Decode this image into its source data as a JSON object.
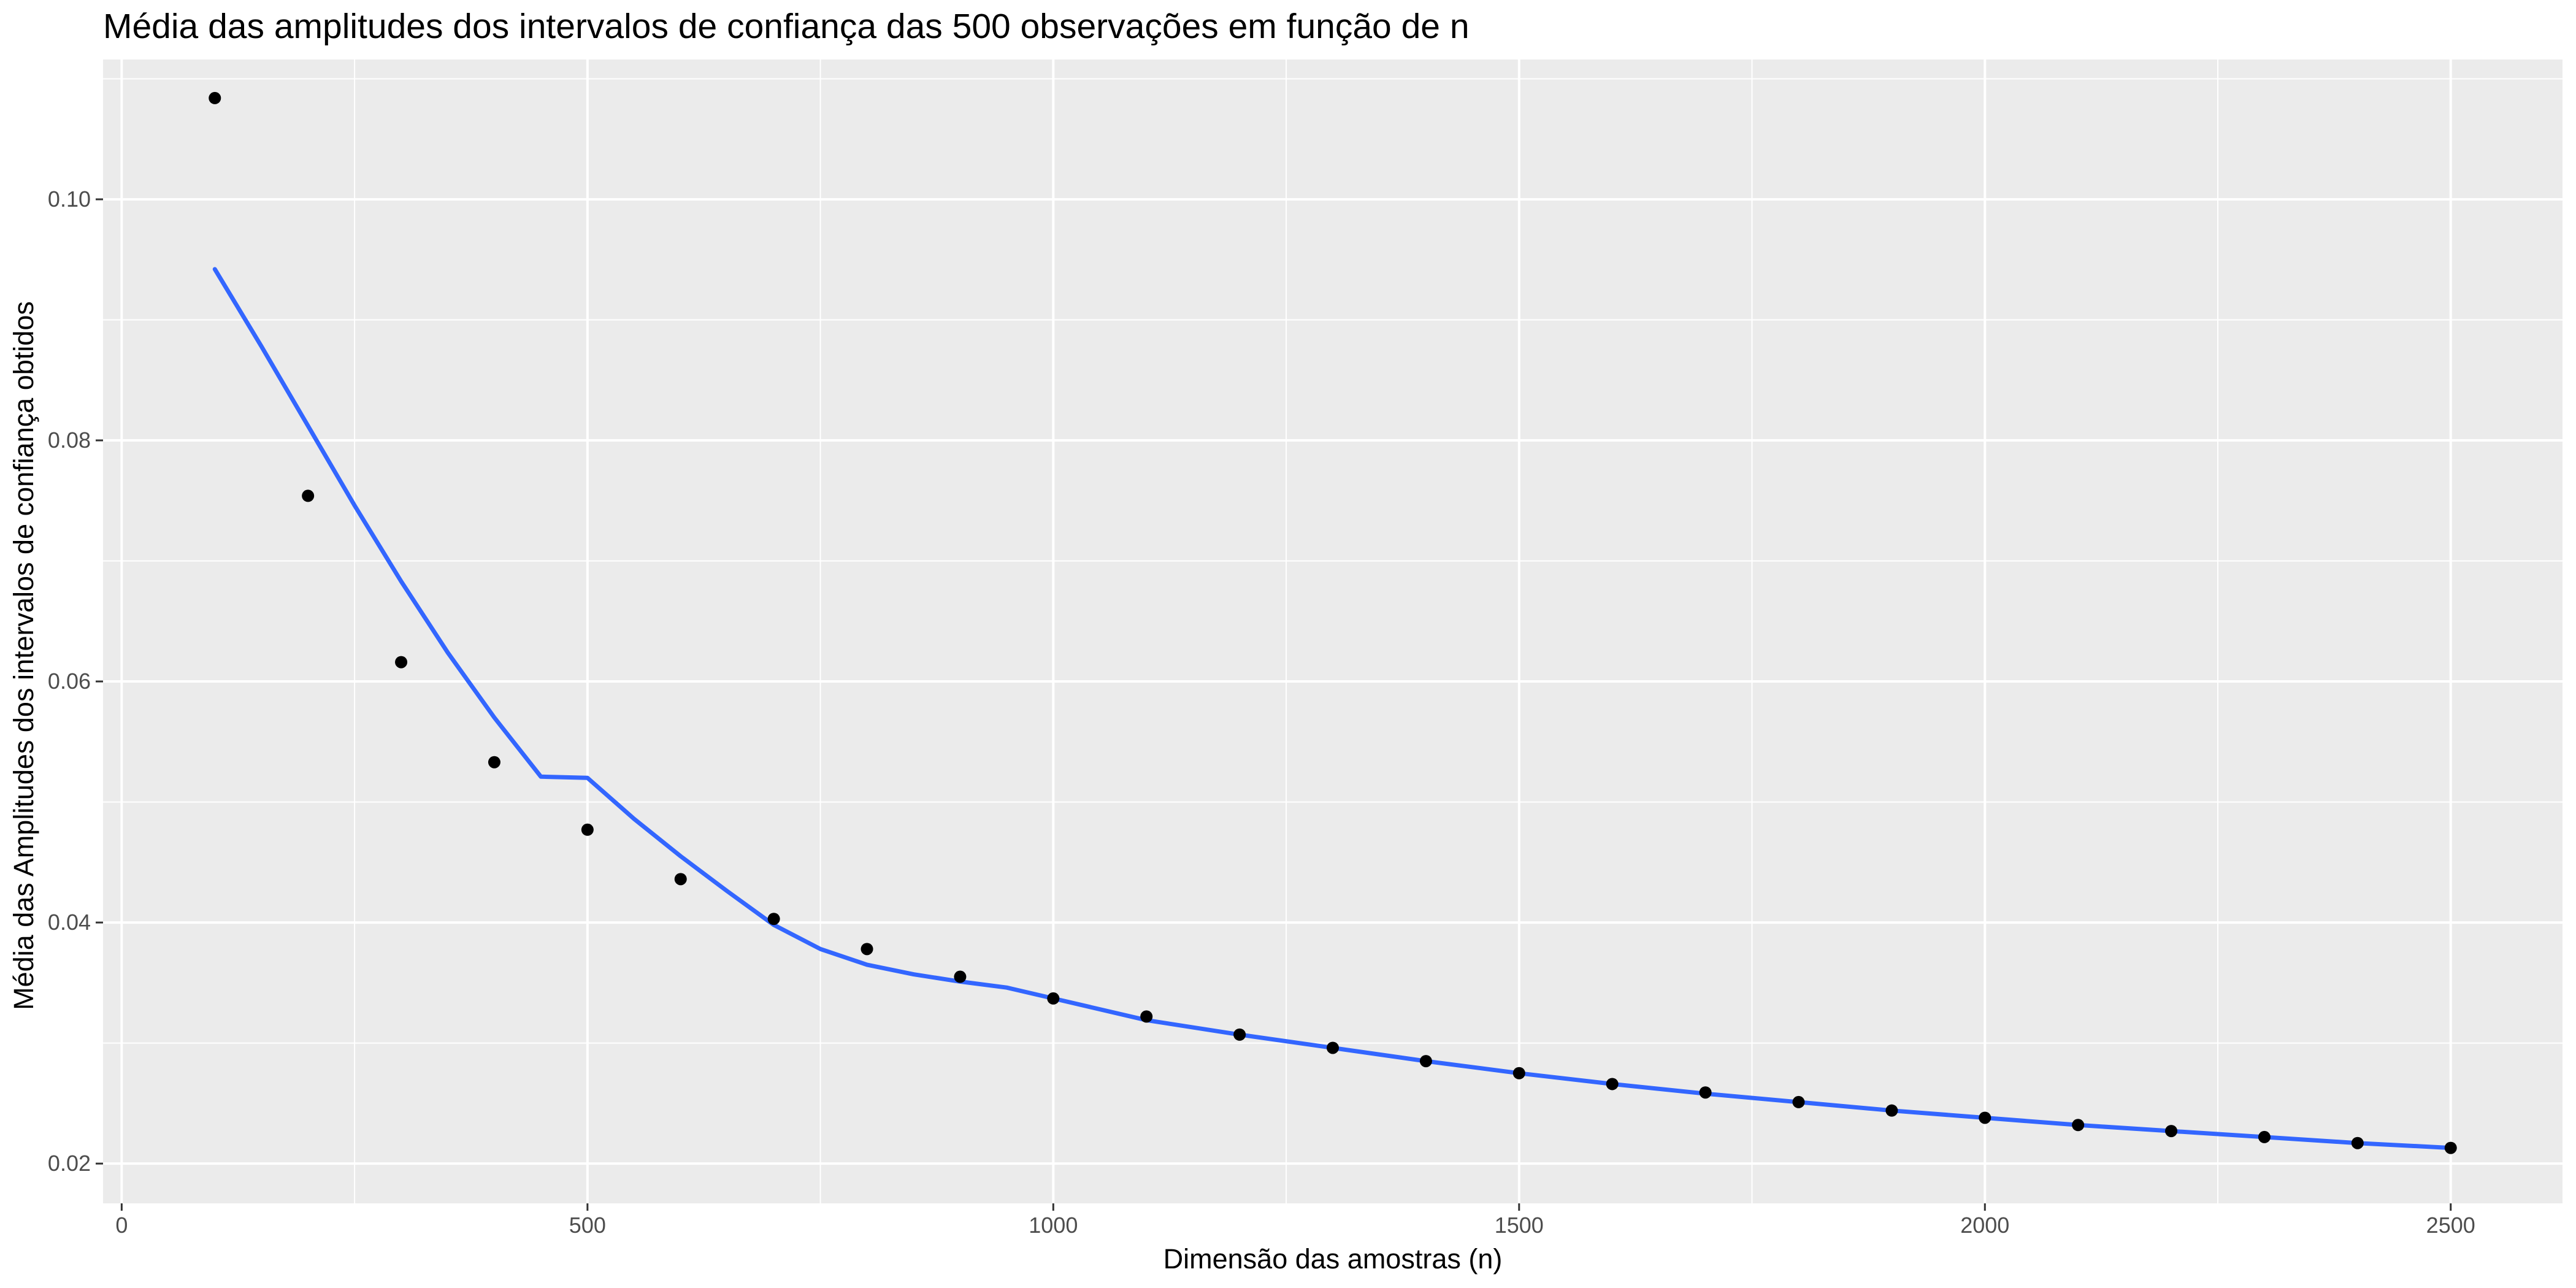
{
  "chart_data": {
    "type": "scatter",
    "title": "Média das amplitudes dos intervalos de confiança das 500 observações em função de n",
    "xlabel": "Dimensão das amostras (n)",
    "ylabel": "Média das Amplitudes dos intervalos de confiança obtidos",
    "xlim": [
      -20,
      2620
    ],
    "ylim": [
      0.0167,
      0.1116
    ],
    "x_ticks": [
      0,
      500,
      1000,
      1500,
      2000,
      2500
    ],
    "x_tick_labels": [
      "0",
      "500",
      "1000",
      "1500",
      "2000",
      "2500"
    ],
    "y_ticks": [
      0.02,
      0.04,
      0.06,
      0.08,
      0.1
    ],
    "y_tick_labels": [
      "0.02",
      "0.04",
      "0.06",
      "0.08",
      "0.10"
    ],
    "grid": true,
    "colors": {
      "panel": "#ebebeb",
      "grid": "#ffffff",
      "points": "#000000",
      "smooth": "#3366ff"
    },
    "series": [
      {
        "type": "scatter",
        "x": [
          100,
          200,
          300,
          400,
          500,
          600,
          700,
          800,
          900,
          1000,
          1100,
          1200,
          1300,
          1400,
          1500,
          1600,
          1700,
          1800,
          1900,
          2000,
          2100,
          2200,
          2300,
          2400,
          2500
        ],
        "values": [
          0.1084,
          0.0754,
          0.0616,
          0.0533,
          0.0477,
          0.0436,
          0.0403,
          0.0378,
          0.0355,
          0.0337,
          0.0322,
          0.0307,
          0.0296,
          0.0285,
          0.0275,
          0.0266,
          0.0259,
          0.0251,
          0.0244,
          0.0238,
          0.0232,
          0.0227,
          0.0222,
          0.0217,
          0.0213
        ]
      },
      {
        "type": "line",
        "x": [
          100,
          150,
          200,
          250,
          300,
          350,
          400,
          450,
          500,
          550,
          600,
          650,
          700,
          750,
          800,
          850,
          900,
          950,
          1000,
          1100,
          1200,
          1300,
          1400,
          1500,
          1600,
          1700,
          1800,
          1900,
          2000,
          2100,
          2200,
          2300,
          2400,
          2500
        ],
        "values": [
          0.0942,
          0.0878,
          0.0812,
          0.0746,
          0.0683,
          0.0624,
          0.057,
          0.0521,
          0.052,
          0.0486,
          0.0455,
          0.0426,
          0.0398,
          0.0378,
          0.0365,
          0.0357,
          0.0351,
          0.0346,
          0.0337,
          0.0319,
          0.0307,
          0.0296,
          0.0285,
          0.0275,
          0.0266,
          0.0258,
          0.0251,
          0.0244,
          0.0238,
          0.0232,
          0.0227,
          0.0222,
          0.0217,
          0.0213
        ]
      }
    ]
  }
}
